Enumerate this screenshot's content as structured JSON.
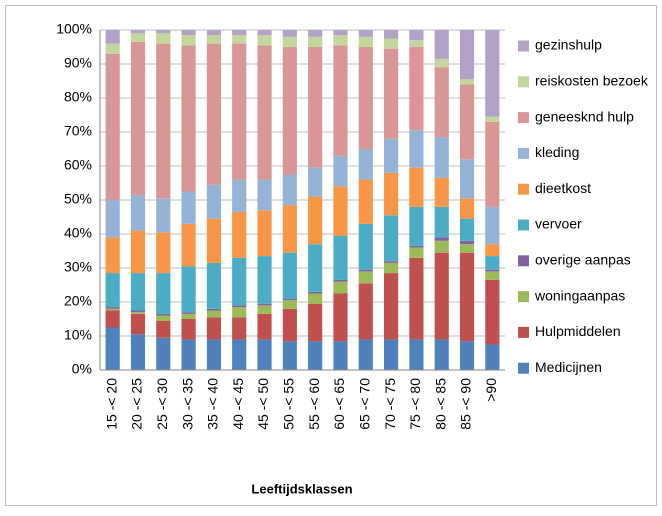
{
  "chart_data": {
    "type": "stacked_bar",
    "x_label": "Leeftijdsklassen",
    "categories": [
      "15 -< 20",
      "20 -< 25",
      "25 -< 30",
      "30 -< 35",
      "35 -< 40",
      "40 -< 45",
      "45 -< 50",
      "50 -< 55",
      "55 -< 60",
      "60 -< 65",
      "65 -< 70",
      "70 -< 75",
      "75 -< 80",
      "80 -< 85",
      "85 -< 90",
      ">90"
    ],
    "ylim": [
      0,
      100
    ],
    "yticks": [
      {
        "value": 0,
        "label": "0%"
      },
      {
        "value": 10,
        "label": "10%"
      },
      {
        "value": 20,
        "label": "20%"
      },
      {
        "value": 30,
        "label": "30%"
      },
      {
        "value": 40,
        "label": "40%"
      },
      {
        "value": 50,
        "label": "50%"
      },
      {
        "value": 60,
        "label": "60%"
      },
      {
        "value": 70,
        "label": "70%"
      },
      {
        "value": 80,
        "label": "80%"
      },
      {
        "value": 90,
        "label": "90%"
      },
      {
        "value": 100,
        "label": "100%"
      }
    ],
    "grid": true,
    "legend": "right",
    "series": [
      {
        "name": "Medicijnen",
        "color": "#4f81bd",
        "values": [
          12.5,
          10.5,
          9.5,
          9,
          9,
          9,
          9,
          8.5,
          8.5,
          8.5,
          9,
          9,
          9,
          9,
          8.5,
          7.5
        ]
      },
      {
        "name": "Hulpmiddelen",
        "color": "#c0504d",
        "values": [
          5,
          6,
          5,
          6,
          6.5,
          6.5,
          7.5,
          9.5,
          11,
          14,
          16.5,
          19.5,
          24,
          25.5,
          26,
          19
        ]
      },
      {
        "name": "woningaanpas",
        "color": "#9bbb59",
        "values": [
          0.5,
          0.5,
          1.5,
          1.5,
          2,
          3,
          2.5,
          2.5,
          3,
          3.5,
          3.5,
          3,
          3,
          3.5,
          2.5,
          2.5
        ]
      },
      {
        "name": "overige aanpas",
        "color": "#8064a2",
        "values": [
          0.5,
          0.5,
          0.5,
          0.5,
          0.5,
          0.5,
          0.5,
          0.5,
          0.5,
          0.5,
          0.5,
          0.5,
          0.5,
          1,
          1,
          0.5
        ]
      },
      {
        "name": "vervoer",
        "color": "#4bacc6",
        "values": [
          10,
          11,
          12,
          13.5,
          13.5,
          14,
          14,
          13.5,
          14,
          13,
          13.5,
          13.5,
          11.5,
          9,
          6.5,
          4
        ]
      },
      {
        "name": "dieetkost",
        "color": "#f79646",
        "values": [
          10.5,
          12.5,
          12,
          12.5,
          13,
          13.5,
          13.5,
          14,
          14,
          14.5,
          13,
          12.5,
          11.5,
          8.5,
          6,
          3.5
        ]
      },
      {
        "name": "kleding",
        "color": "#95b3d7",
        "values": [
          11,
          10.5,
          10,
          9.5,
          10,
          9.5,
          9,
          9,
          8.5,
          9,
          9,
          10,
          11,
          12,
          11.5,
          11
        ]
      },
      {
        "name": "geneesknd hulp",
        "color": "#d99694",
        "values": [
          43,
          45,
          45.5,
          43,
          41.5,
          40,
          39.5,
          37.5,
          35.5,
          32.5,
          30,
          26.5,
          24.5,
          20.5,
          22,
          25
        ]
      },
      {
        "name": "reiskosten bezoek",
        "color": "#c3d69b",
        "values": [
          3,
          2.5,
          3,
          3,
          2.5,
          2.5,
          3,
          3,
          3,
          3,
          3,
          3,
          2,
          2.5,
          1.5,
          1.5
        ]
      },
      {
        "name": "gezinshulp",
        "color": "#b3a2c7",
        "values": [
          4,
          1,
          1,
          1.5,
          1.5,
          1.5,
          1.5,
          2,
          2,
          1.5,
          2,
          2.5,
          3,
          8.5,
          14.5,
          25.5
        ]
      }
    ]
  }
}
